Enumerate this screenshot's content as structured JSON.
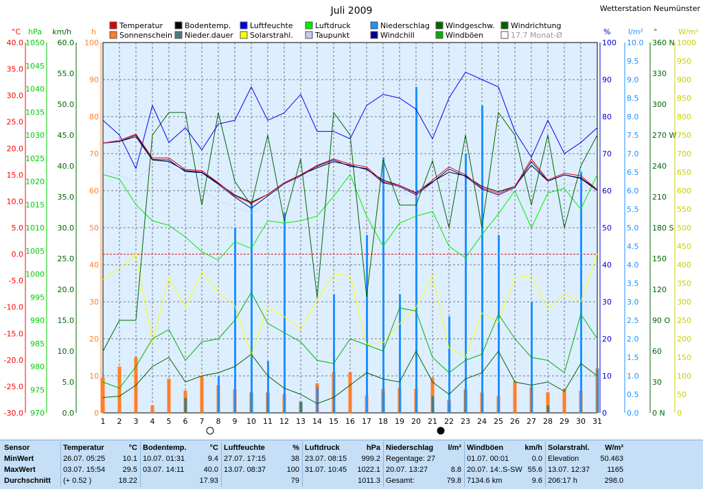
{
  "title": "Juli 2009",
  "station": "Wetterstation Neumünster",
  "legend": [
    {
      "label": "Temperatur",
      "color": "#e00000"
    },
    {
      "label": "Sonnenschein",
      "color": "#ff7f27"
    },
    {
      "label": "Bodentemp.",
      "color": "#000000"
    },
    {
      "label": "Nieder.dauer",
      "color": "#4a7a7a"
    },
    {
      "label": "Luftfeuchte",
      "color": "#0000ee"
    },
    {
      "label": "Solarstrahl.",
      "color": "#ffff00"
    },
    {
      "label": "Luftdruck",
      "color": "#00ee00"
    },
    {
      "label": "Taupunkt",
      "color": "#c8c8f0"
    },
    {
      "label": "Niederschlag",
      "color": "#1e90ff"
    },
    {
      "label": "Windchill",
      "color": "#00008b"
    },
    {
      "label": "Windgeschw.",
      "color": "#006400"
    },
    {
      "label": "Windböen",
      "color": "#00b000"
    },
    {
      "label": "Windrichtung",
      "color": "#006400"
    },
    {
      "label": "17.7 Monat-Ø",
      "color": "#ffffff"
    }
  ],
  "axes": {
    "left": [
      {
        "unit": "°C",
        "color": "#ff0000",
        "ticks": [
          "40.0",
          "35.0",
          "30.0",
          "25.0",
          "20.0",
          "15.0",
          "10.0",
          "5.0",
          "0.0",
          "-5.0",
          "-10.0",
          "-15.0",
          "-20.0",
          "-25.0",
          "-30.0"
        ]
      },
      {
        "unit": "hPa",
        "color": "#00cc00",
        "ticks": [
          "1050",
          "1045",
          "1040",
          "1035",
          "1030",
          "1025",
          "1020",
          "1015",
          "1010",
          "1005",
          "1000",
          "995",
          "990",
          "985",
          "980",
          "975",
          "970"
        ]
      },
      {
        "unit": "km/h",
        "color": "#006400",
        "ticks": [
          "60.0",
          "55.0",
          "50.0",
          "45.0",
          "40.0",
          "35.0",
          "30.0",
          "25.0",
          "20.0",
          "15.0",
          "10.0",
          "5.0",
          "0.0"
        ]
      },
      {
        "unit": "h",
        "color": "#ff7f27",
        "ticks": [
          "100",
          "90",
          "80",
          "70",
          "60",
          "50",
          "40",
          "30",
          "20",
          "10",
          "0"
        ]
      }
    ],
    "right": [
      {
        "unit": "%",
        "color": "#0000cc",
        "ticks": [
          "100",
          "90",
          "80",
          "70",
          "60",
          "50",
          "40",
          "30",
          "20",
          "10",
          "0"
        ]
      },
      {
        "unit": "l/m²",
        "color": "#1e90ff",
        "ticks": [
          "10.0",
          "9.5",
          "9.0",
          "8.5",
          "8.0",
          "7.5",
          "7.0",
          "6.5",
          "6.0",
          "5.5",
          "5.0",
          "4.5",
          "4.0",
          "3.5",
          "3.0",
          "2.5",
          "2.0",
          "1.5",
          "1.0",
          "0.5",
          "0.0"
        ]
      },
      {
        "unit": "°",
        "color": "#006400",
        "ticks": [
          "360 N",
          "330",
          "300",
          "270 W",
          "240",
          "210",
          "180 S",
          "150",
          "120",
          "90 O",
          "60",
          "30",
          "0 N"
        ]
      },
      {
        "unit": "W/m²",
        "color": "#cccc00",
        "ticks": [
          "1000",
          "950",
          "900",
          "850",
          "800",
          "750",
          "700",
          "650",
          "600",
          "550",
          "500",
          "450",
          "400",
          "350",
          "300",
          "250",
          "200",
          "150",
          "100",
          "50",
          "0"
        ]
      }
    ]
  },
  "chart_data": {
    "type": "line",
    "title": "Juli 2009",
    "x": [
      1,
      2,
      3,
      4,
      5,
      6,
      7,
      8,
      9,
      10,
      11,
      12,
      13,
      14,
      15,
      16,
      17,
      18,
      19,
      20,
      21,
      22,
      23,
      24,
      25,
      26,
      27,
      28,
      29,
      30,
      31
    ],
    "xlim": [
      1,
      31
    ],
    "xlabel": "",
    "ylim_temperature": [
      -30,
      40
    ],
    "ylim_pressure": [
      970,
      1050
    ],
    "ylim_wind": [
      0,
      60
    ],
    "ylim_hours": [
      0,
      100
    ],
    "ylim_humidity": [
      0,
      100
    ],
    "ylim_rain": [
      0,
      10
    ],
    "ylim_direction": [
      0,
      360
    ],
    "ylim_solar": [
      0,
      1000
    ],
    "series": [
      {
        "name": "Temperatur",
        "axis": "temp",
        "color": "#e00000",
        "values": [
          21.0,
          21.5,
          22.7,
          18.2,
          18.2,
          16.0,
          15.8,
          13.5,
          11.0,
          9.6,
          11.3,
          13.5,
          15.0,
          16.8,
          18.0,
          17.0,
          16.5,
          13.7,
          13.0,
          11.5,
          14.0,
          16.5,
          15.0,
          12.5,
          11.5,
          12.8,
          18.0,
          14.0,
          15.3,
          14.8,
          12.2
        ]
      },
      {
        "name": "Bodentemp.",
        "axis": "temp",
        "color": "#000000",
        "values": [
          21.0,
          21.3,
          22.2,
          17.8,
          17.5,
          15.8,
          15.5,
          13.4,
          11.2,
          9.8,
          11.3,
          13.5,
          15.0,
          16.3,
          17.5,
          16.8,
          16.0,
          14.0,
          13.0,
          11.6,
          13.7,
          15.5,
          14.8,
          12.8,
          11.8,
          12.8,
          16.8,
          13.8,
          15.0,
          14.4,
          12.2
        ]
      },
      {
        "name": "Windchill",
        "axis": "temp",
        "color": "#00008b",
        "values": [
          21.0,
          21.3,
          22.5,
          17.9,
          17.8,
          15.6,
          15.4,
          13.2,
          10.8,
          8.7,
          11.0,
          13.3,
          14.8,
          16.6,
          17.8,
          16.6,
          16.2,
          13.5,
          12.8,
          11.2,
          13.6,
          16.1,
          14.7,
          12.3,
          11.2,
          12.6,
          17.5,
          13.8,
          15.0,
          14.3,
          12.0
        ]
      },
      {
        "name": "Taupunkt",
        "axis": "temp",
        "color": "#c8c8f0",
        "values": [
          15.8,
          14.8,
          13.8,
          17.0,
          16.8,
          14.5,
          12.0,
          10.2,
          8.8,
          7.8,
          9.6,
          12.5,
          14.6,
          15.0,
          15.0,
          14.0,
          15.8,
          13.1,
          12.0,
          10.8,
          13.4,
          14.0,
          13.0,
          11.8,
          10.8,
          11.8,
          12.8,
          12.8,
          13.0,
          13.6,
          11.5
        ]
      },
      {
        "name": "Luftfeuchte",
        "axis": "humidity",
        "color": "#0000ee",
        "values": [
          79,
          75,
          66,
          83,
          73,
          77,
          71,
          78,
          79,
          88,
          79,
          81,
          86,
          76,
          76,
          74,
          83,
          86,
          85,
          82,
          74,
          85,
          92,
          90,
          88,
          76,
          69,
          79,
          70,
          73,
          77
        ]
      },
      {
        "name": "Luftdruck",
        "axis": "pressure",
        "color": "#00ee00",
        "values": [
          1021.5,
          1020.5,
          1015.0,
          1011.5,
          1010.5,
          1008.0,
          1004.8,
          1003.0,
          1007.0,
          1005.5,
          1011.5,
          1011.0,
          1011.5,
          1012.5,
          1016.8,
          1021.5,
          1012.5,
          1006.0,
          1011.0,
          1012.5,
          1013.5,
          1006.0,
          1003.5,
          1008.5,
          1013.0,
          1018.0,
          1010.0,
          1017.5,
          1018.5,
          1014.0,
          1021.5
        ]
      },
      {
        "name": "Windgeschw.",
        "axis": "wind",
        "color": "#006400",
        "values": [
          2.5,
          2.7,
          4.5,
          7.5,
          9.0,
          5.0,
          6.0,
          6.5,
          7.5,
          9.5,
          6.0,
          4.0,
          3.0,
          1.5,
          2.5,
          4.5,
          6.5,
          5.5,
          5.0,
          10.0,
          5.0,
          3.0,
          5.5,
          6.5,
          10.0,
          5.0,
          4.5,
          5.0,
          3.5,
          8.0,
          6.0
        ]
      },
      {
        "name": "Windböen",
        "axis": "wind",
        "color": "#00b000",
        "values": [
          5.0,
          4.0,
          7.5,
          12.0,
          13.5,
          8.5,
          11.5,
          12.0,
          15.0,
          19.5,
          14.5,
          13.0,
          11.5,
          8.5,
          8.0,
          12.0,
          11.0,
          10.0,
          17.0,
          16.5,
          9.0,
          6.5,
          8.5,
          9.5,
          16.0,
          12.0,
          9.0,
          8.5,
          6.5,
          16.0,
          12.0
        ]
      },
      {
        "name": "Windrichtung",
        "axis": "direction",
        "color": "#006400",
        "values": [
          60,
          90,
          90,
          270,
          292,
          292,
          202,
          292,
          225,
          202,
          270,
          187,
          247,
          112,
          292,
          270,
          113,
          246,
          202,
          202,
          245,
          180,
          270,
          180,
          292,
          270,
          202,
          270,
          180,
          240,
          270
        ]
      },
      {
        "name": "Solarstrahl.",
        "axis": "solar",
        "color": "#ffff00",
        "values": [
          360,
          390,
          430,
          190,
          365,
          285,
          380,
          325,
          290,
          155,
          285,
          260,
          225,
          305,
          375,
          370,
          185,
          190,
          240,
          285,
          370,
          175,
          150,
          270,
          245,
          365,
          370,
          280,
          320,
          300,
          430
        ]
      }
    ],
    "bars": [
      {
        "name": "Sonnenschein",
        "axis": "hours",
        "color": "#ff7f27",
        "values": [
          9.5,
          12.5,
          15,
          2,
          9.2,
          6,
          10,
          7.5,
          6.4,
          5.5,
          5.5,
          5,
          3,
          8,
          11,
          11,
          4.7,
          6.5,
          6.8,
          6.5,
          9.5,
          3.5,
          6.4,
          5.5,
          4.5,
          8.5,
          7,
          5.6,
          6.5,
          6,
          12
        ]
      },
      {
        "name": "Nieder.dauer",
        "axis": "hours",
        "color": "#4a7a7a",
        "values": [
          0,
          0,
          0,
          0,
          0,
          4,
          0,
          0,
          0,
          5.6,
          5.5,
          0,
          3,
          0,
          0,
          0,
          0,
          5.4,
          0,
          0,
          4.5,
          3,
          6,
          0,
          0,
          0,
          0,
          2,
          0,
          0,
          0
        ]
      },
      {
        "name": "Niederschlag",
        "axis": "rain",
        "color": "#1e90ff",
        "values": [
          0,
          0,
          0,
          0,
          0,
          0,
          0,
          1.0,
          5.0,
          5.7,
          1.4,
          5.4,
          0,
          0.7,
          3.2,
          0,
          4.8,
          6.9,
          3.2,
          8.8,
          0,
          2.6,
          7.0,
          8.3,
          4.8,
          0,
          3.0,
          0,
          0,
          6.5,
          1.2
        ]
      }
    ]
  },
  "footer_marks": [
    {
      "day": 8,
      "symbol": "full-moon"
    },
    {
      "day": 22,
      "symbol": "new-moon"
    }
  ],
  "stats": {
    "headers": [
      "Sensor",
      "Temperatur",
      "°C",
      "Bodentemp.",
      "°C",
      "Luftfeuchte",
      "%",
      "Luftdruck",
      "hPa",
      "Niederschlag",
      "l/m²",
      "Windböen",
      "km/h",
      "Solarstrahl.",
      "W/m²"
    ],
    "rows": [
      {
        "label": "MinWert",
        "cells": [
          [
            "26.07.  05:25",
            "10.1"
          ],
          [
            "10.07.  01:31",
            "9.4"
          ],
          [
            "27.07.  17:15",
            "38"
          ],
          [
            "23.07.  08:15",
            "999.2"
          ],
          [
            "Regentage: 27",
            ""
          ],
          [
            "01.07.  00:01",
            "0.0"
          ],
          [
            "Elevation",
            "50.463"
          ]
        ]
      },
      {
        "label": "MaxWert",
        "cells": [
          [
            "03.07.  15:54",
            "29.5"
          ],
          [
            "03.07.  14:11",
            "40.0"
          ],
          [
            "13.07.  08:37",
            "100"
          ],
          [
            "31.07.  10:45",
            "1022.1"
          ],
          [
            "20.07.  13:27",
            "8.8"
          ],
          [
            "20.07.  14:.S-SW",
            "55.6"
          ],
          [
            "13.07.  12:37",
            "1165"
          ]
        ]
      },
      {
        "label": "Durchschnitt",
        "cells": [
          [
            "(+ 0.52 )",
            "18.22"
          ],
          [
            "",
            "17.93"
          ],
          [
            "",
            "79"
          ],
          [
            "",
            "1011.3"
          ],
          [
            "Gesamt:",
            "79.8"
          ],
          [
            "7134.6 km",
            "9.6"
          ],
          [
            "206:17 h",
            "298.0"
          ]
        ]
      }
    ]
  }
}
